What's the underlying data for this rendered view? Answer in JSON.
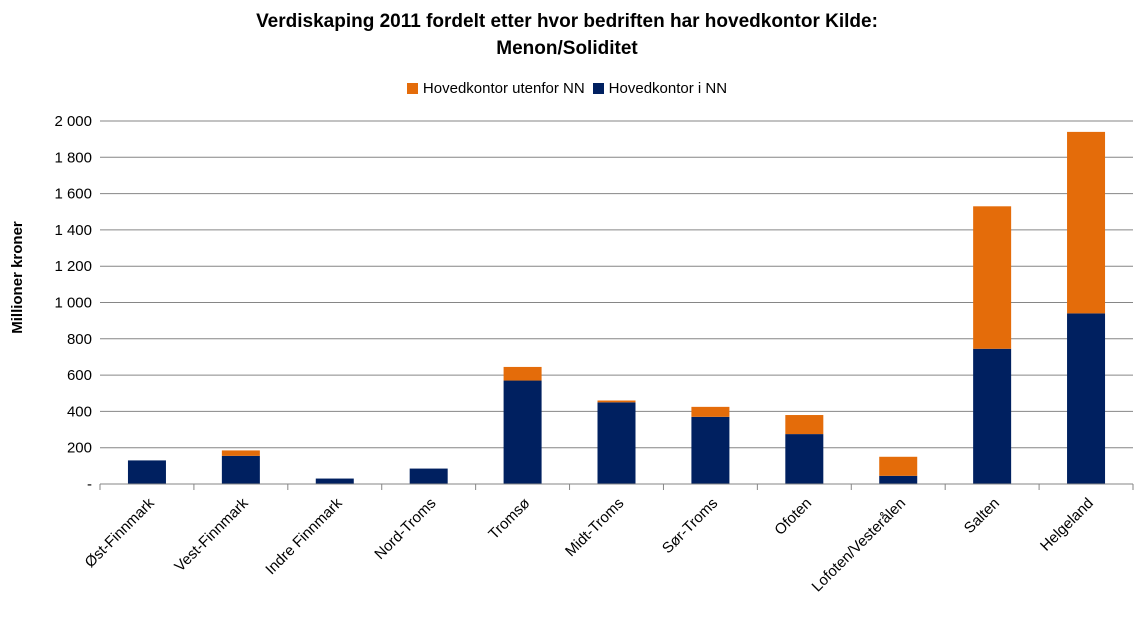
{
  "chart_data": {
    "type": "bar",
    "stacked": true,
    "title": "Verdiskaping 2011 fordelt etter hvor bedriften har hovedkontor Kilde:",
    "title_line2": "Menon/Soliditet",
    "xlabel": "",
    "ylabel": "Millioner kroner",
    "ylim": [
      0,
      2000
    ],
    "y_ticks": [
      0,
      200,
      400,
      600,
      800,
      1000,
      1200,
      1400,
      1600,
      1800,
      2000
    ],
    "y_tick_labels": [
      "-",
      "200",
      "400",
      "600",
      "800",
      "1 000",
      "1 200",
      "1 400",
      "1 600",
      "1 800",
      "2 000"
    ],
    "grid": true,
    "legend_position": "top",
    "categories": [
      "Øst-Finnmark",
      "Vest-Finnmark",
      "Indre Finnmark",
      "Nord-Troms",
      "Tromsø",
      "Midt-Troms",
      "Sør-Troms",
      "Ofoten",
      "Lofoten/Vesterålen",
      "Salten",
      "Helgeland"
    ],
    "series": [
      {
        "name": "Hovedkontor i NN",
        "color": "#002060",
        "values": [
          130,
          155,
          30,
          85,
          570,
          450,
          370,
          275,
          45,
          745,
          940
        ]
      },
      {
        "name": "Hovedkontor utenfor NN",
        "color": "#E46C0A",
        "values": [
          0,
          30,
          0,
          0,
          75,
          10,
          55,
          105,
          105,
          785,
          1000
        ]
      }
    ],
    "legend_order": [
      1,
      0
    ]
  }
}
